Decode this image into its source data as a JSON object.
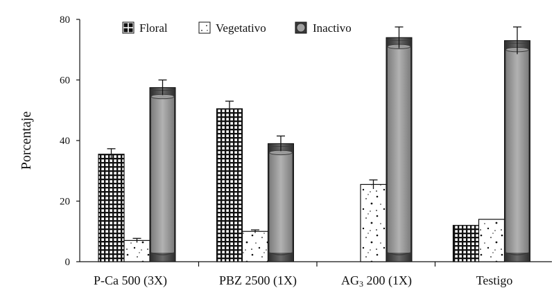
{
  "chart_data": {
    "type": "bar",
    "title": "",
    "xlabel": "",
    "ylabel": "Porcentaje",
    "ylim": [
      0,
      80
    ],
    "yticks": [
      "0",
      "20",
      "40",
      "60",
      "80"
    ],
    "grid": false,
    "legend_position": "top-left",
    "categories": [
      "P-Ca 500 (3X)",
      "PBZ 2500 (1X)",
      "AG3 200 (1X)",
      "Testigo"
    ],
    "series": [
      {
        "name": "Floral",
        "pattern": "grid",
        "values": [
          35.5,
          50.5,
          0,
          12
        ],
        "errors": [
          1.8,
          2.5,
          0,
          0
        ]
      },
      {
        "name": "Vegetativo",
        "pattern": "dots",
        "values": [
          7,
          10,
          25.5,
          14
        ],
        "errors": [
          0.7,
          0.5,
          1.5,
          0
        ]
      },
      {
        "name": "Inactivo",
        "pattern": "cylinder",
        "values": [
          57.5,
          39,
          74,
          73
        ],
        "errors": [
          2.5,
          2.5,
          3.5,
          4.5
        ]
      }
    ],
    "colors": {
      "ink": "#111111",
      "dark": "#4a4a4a",
      "mid": "#8f8f8f",
      "light": "#a8a8a8",
      "background": "#ffffff"
    }
  }
}
